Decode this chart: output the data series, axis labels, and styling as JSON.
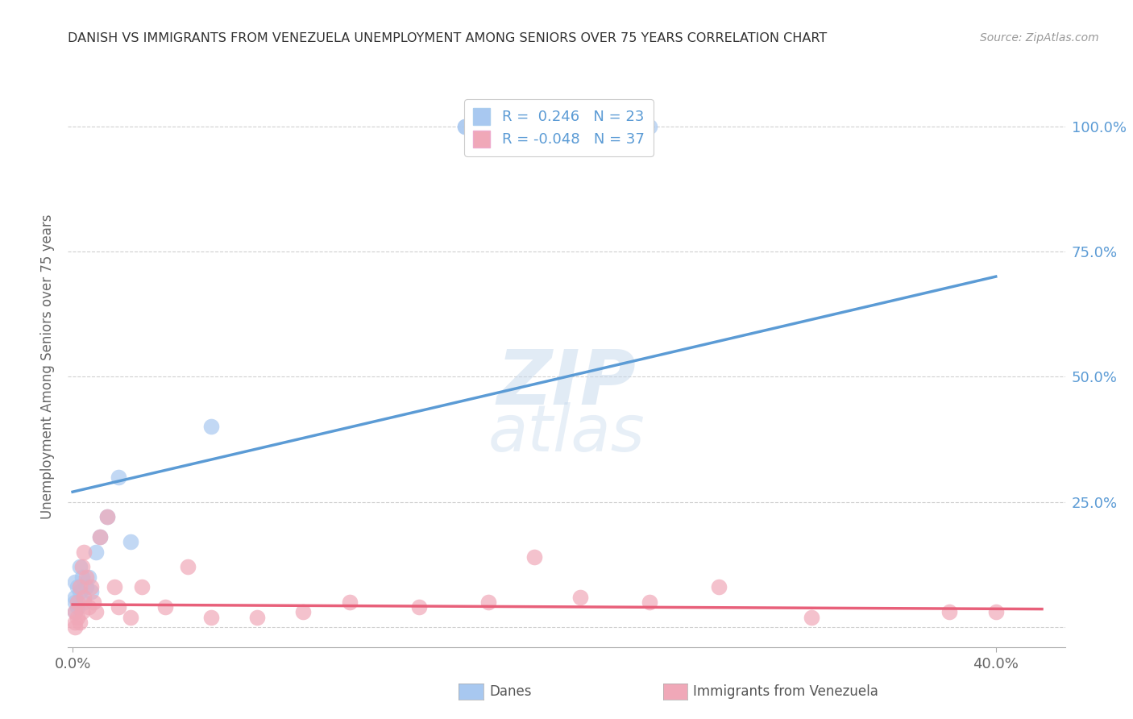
{
  "title": "DANISH VS IMMIGRANTS FROM VENEZUELA UNEMPLOYMENT AMONG SENIORS OVER 75 YEARS CORRELATION CHART",
  "source": "Source: ZipAtlas.com",
  "ylabel": "Unemployment Among Seniors over 75 years",
  "y_ticks": [
    0.0,
    0.25,
    0.5,
    0.75,
    1.0
  ],
  "y_tick_labels_right": [
    "",
    "25.0%",
    "50.0%",
    "75.0%",
    "100.0%"
  ],
  "xlim": [
    -0.002,
    0.43
  ],
  "ylim": [
    -0.04,
    1.08
  ],
  "danes_R": "0.246",
  "danes_N": "23",
  "venezuela_R": "-0.048",
  "venezuela_N": "37",
  "blue_line_color": "#5b9bd5",
  "pink_line_color": "#e8607a",
  "dot_blue": "#a8c8f0",
  "dot_pink": "#f0a8b8",
  "danes_scatter_x": [
    0.001,
    0.001,
    0.001,
    0.001,
    0.002,
    0.002,
    0.003,
    0.003,
    0.004,
    0.005,
    0.006,
    0.007,
    0.008,
    0.01,
    0.012,
    0.015,
    0.02,
    0.025,
    0.06,
    0.25,
    0.17,
    0.17,
    0.22
  ],
  "danes_scatter_y": [
    0.03,
    0.05,
    0.06,
    0.09,
    0.04,
    0.08,
    0.07,
    0.12,
    0.1,
    0.05,
    0.08,
    0.1,
    0.07,
    0.15,
    0.18,
    0.22,
    0.3,
    0.17,
    0.4,
    1.0,
    1.0,
    1.0,
    1.0
  ],
  "venezuela_scatter_x": [
    0.001,
    0.001,
    0.001,
    0.002,
    0.002,
    0.003,
    0.003,
    0.004,
    0.004,
    0.005,
    0.005,
    0.006,
    0.007,
    0.008,
    0.009,
    0.01,
    0.012,
    0.015,
    0.018,
    0.02,
    0.025,
    0.03,
    0.04,
    0.05,
    0.06,
    0.08,
    0.1,
    0.12,
    0.15,
    0.18,
    0.2,
    0.25,
    0.28,
    0.38,
    0.4,
    0.32,
    0.22
  ],
  "venezuela_scatter_y": [
    0.0,
    0.01,
    0.03,
    0.02,
    0.05,
    0.01,
    0.08,
    0.03,
    0.12,
    0.06,
    0.15,
    0.1,
    0.04,
    0.08,
    0.05,
    0.03,
    0.18,
    0.22,
    0.08,
    0.04,
    0.02,
    0.08,
    0.04,
    0.12,
    0.02,
    0.02,
    0.03,
    0.05,
    0.04,
    0.05,
    0.14,
    0.05,
    0.08,
    0.03,
    0.03,
    0.02,
    0.06
  ],
  "danes_line_x": [
    0.0,
    0.4
  ],
  "danes_line_y": [
    0.27,
    0.7
  ],
  "venezuela_line_x": [
    0.0,
    0.42
  ],
  "venezuela_line_y": [
    0.045,
    0.036
  ],
  "watermark_top": "ZIP",
  "watermark_bottom": "atlas",
  "bg_color": "#ffffff",
  "grid_color": "#d0d0d0",
  "title_color": "#333333",
  "axis_label_color": "#666666",
  "right_tick_color": "#5b9bd5",
  "legend_R_color": "#5b9bd5",
  "bottom_legend_label1": "Danes",
  "bottom_legend_label2": "Immigrants from Venezuela"
}
